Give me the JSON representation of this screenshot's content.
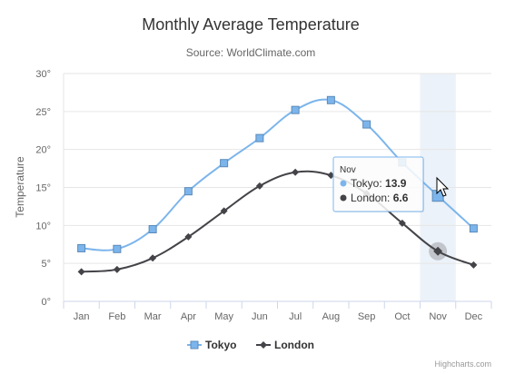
{
  "chart_data": {
    "type": "line",
    "title": "Monthly Average Temperature",
    "subtitle": "Source: WorldClimate.com",
    "ylabel": "Temperature",
    "y_tick_suffix": "°",
    "ylim": [
      0,
      30
    ],
    "y_ticks": [
      0,
      5,
      10,
      15,
      20,
      25,
      30
    ],
    "categories": [
      "Jan",
      "Feb",
      "Mar",
      "Apr",
      "May",
      "Jun",
      "Jul",
      "Aug",
      "Sep",
      "Oct",
      "Nov",
      "Dec"
    ],
    "series": [
      {
        "name": "Tokyo",
        "color": "#7cb5ec",
        "marker": "square",
        "values": [
          7.0,
          6.9,
          9.5,
          14.5,
          18.2,
          21.5,
          25.2,
          26.5,
          23.3,
          18.3,
          13.9,
          9.6
        ]
      },
      {
        "name": "London",
        "color": "#434348",
        "marker": "diamond",
        "values": [
          3.9,
          4.2,
          5.7,
          8.5,
          11.9,
          15.2,
          17.0,
          16.6,
          14.2,
          10.3,
          6.6,
          4.8
        ]
      }
    ],
    "grid": true,
    "legend_position": "bottom-center",
    "hovered_category": "Nov",
    "tooltip": {
      "header": "Nov",
      "rows": [
        {
          "series": "Tokyo",
          "value": "13.9"
        },
        {
          "series": "London",
          "value": "6.6"
        }
      ]
    },
    "credits": "Highcharts.com"
  }
}
